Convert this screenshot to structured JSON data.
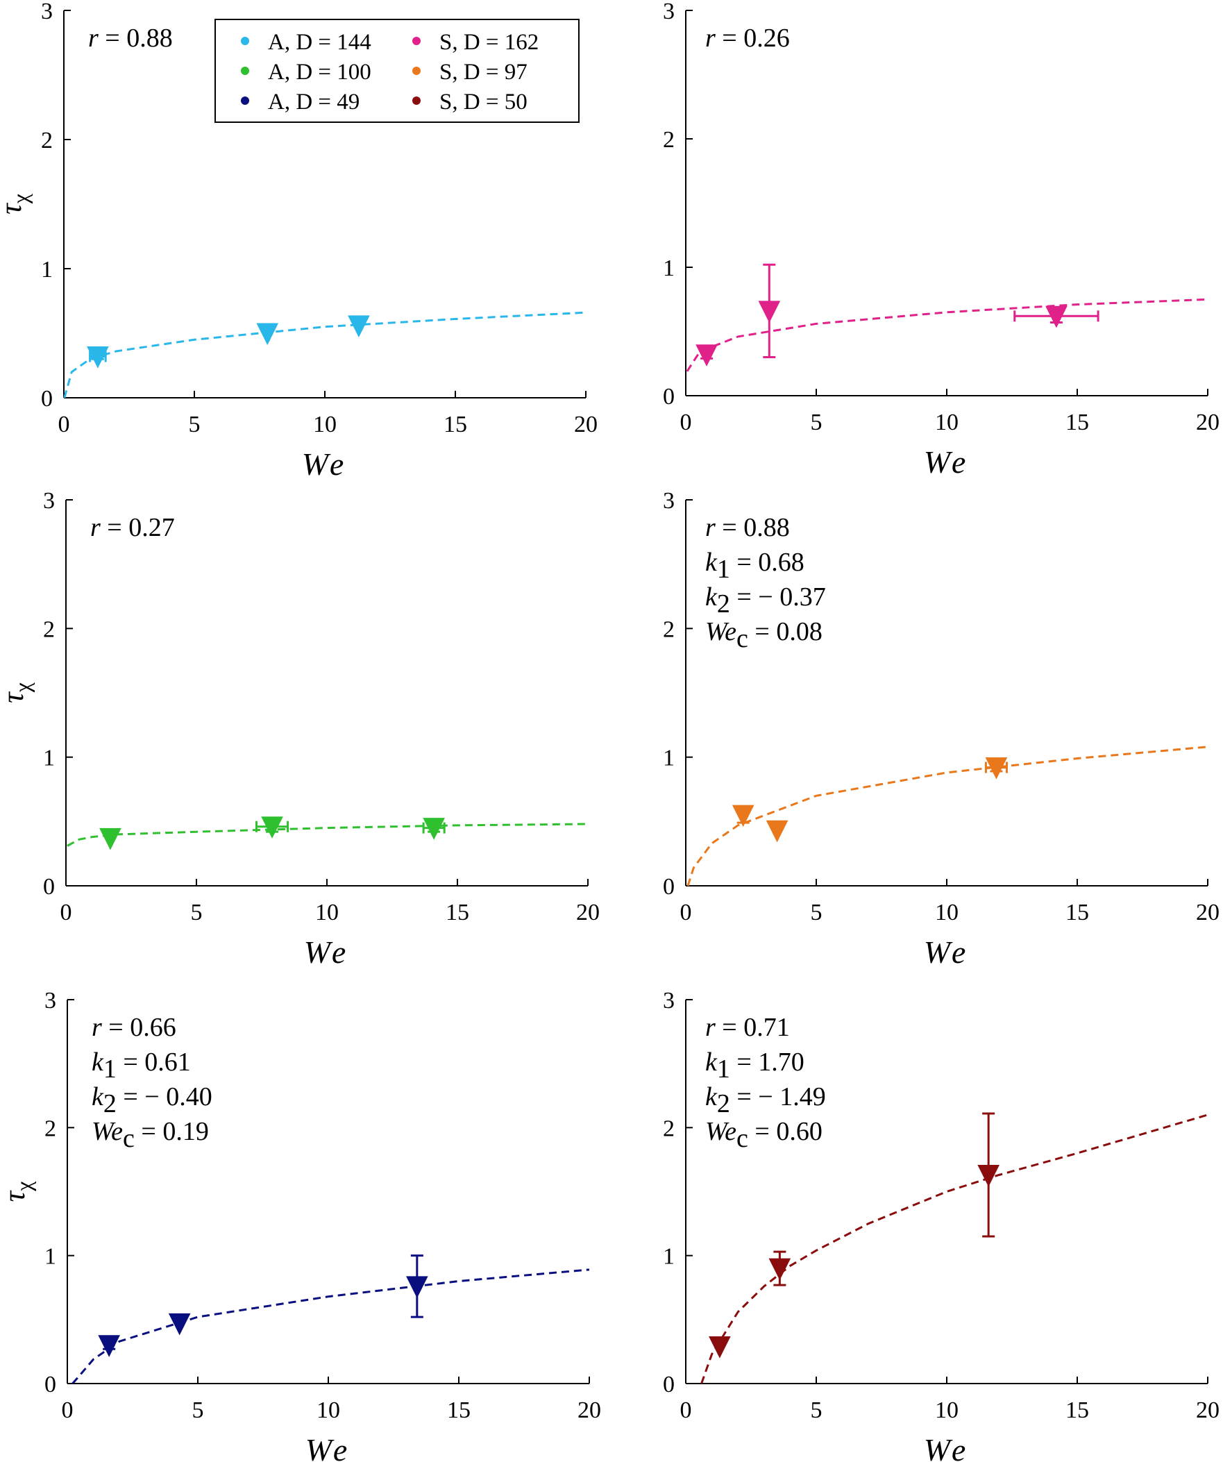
{
  "chart_data": [
    {
      "type": "scatter",
      "xlabel": "We",
      "ylabel": "τχ",
      "xlim": [
        0,
        20
      ],
      "ylim": [
        0,
        3
      ],
      "xticks": [
        "0",
        "5",
        "10",
        "15",
        "20"
      ],
      "yticks": [
        "0",
        "1",
        "2",
        "3"
      ],
      "series": [
        {
          "name": "A, D = 144",
          "color": "#29b6e8",
          "points": [
            {
              "x": 1.3,
              "y": 0.32,
              "xerr": 0.3,
              "yerr": 0.02
            },
            {
              "x": 7.8,
              "y": 0.5
            },
            {
              "x": 11.3,
              "y": 0.56
            }
          ],
          "fit": [
            [
              0.02,
              0.0
            ],
            [
              0.3,
              0.2
            ],
            [
              1,
              0.3
            ],
            [
              2,
              0.36
            ],
            [
              5,
              0.45
            ],
            [
              10,
              0.55
            ],
            [
              15,
              0.61
            ],
            [
              20,
              0.66
            ]
          ]
        }
      ],
      "annotations": [
        {
          "var": "r",
          "value": "= 0.88"
        }
      ]
    },
    {
      "type": "scatter",
      "xlabel": "We",
      "ylabel": "",
      "xlim": [
        0,
        20
      ],
      "ylim": [
        0,
        3
      ],
      "xticks": [
        "0",
        "5",
        "10",
        "15",
        "20"
      ],
      "yticks": [
        "0",
        "1",
        "2",
        "3"
      ],
      "series": [
        {
          "name": "S, D = 162",
          "color": "#e0218a",
          "points": [
            {
              "x": 0.8,
              "y": 0.32,
              "yerr": 0.03
            },
            {
              "x": 3.2,
              "y": 0.66,
              "yerr": 0.36
            },
            {
              "x": 14.2,
              "y": 0.62,
              "xerr": 1.6,
              "yerr": 0.05
            }
          ],
          "fit": [
            [
              0.05,
              0.19
            ],
            [
              0.5,
              0.33
            ],
            [
              1,
              0.38
            ],
            [
              2,
              0.46
            ],
            [
              5,
              0.56
            ],
            [
              10,
              0.65
            ],
            [
              15,
              0.71
            ],
            [
              20,
              0.75
            ]
          ]
        }
      ],
      "annotations": [
        {
          "var": "r",
          "value": "= 0.26"
        }
      ]
    },
    {
      "type": "scatter",
      "xlabel": "We",
      "ylabel": "τχ",
      "xlim": [
        0,
        20
      ],
      "ylim": [
        0,
        3
      ],
      "xticks": [
        "0",
        "5",
        "10",
        "15",
        "20"
      ],
      "yticks": [
        "0",
        "1",
        "2",
        "3"
      ],
      "series": [
        {
          "name": "A, D = 100",
          "color": "#2fc02f",
          "points": [
            {
              "x": 1.7,
              "y": 0.37
            },
            {
              "x": 7.9,
              "y": 0.46,
              "xerr": 0.6,
              "yerr": 0.04
            },
            {
              "x": 14.1,
              "y": 0.45,
              "xerr": 0.4,
              "yerr": 0.03
            }
          ],
          "fit": [
            [
              0.05,
              0.31
            ],
            [
              0.5,
              0.36
            ],
            [
              1,
              0.38
            ],
            [
              2,
              0.4
            ],
            [
              5,
              0.42
            ],
            [
              10,
              0.45
            ],
            [
              15,
              0.47
            ],
            [
              20,
              0.48
            ]
          ]
        }
      ],
      "annotations": [
        {
          "var": "r",
          "value": "= 0.27"
        }
      ]
    },
    {
      "type": "scatter",
      "xlabel": "We",
      "ylabel": "",
      "xlim": [
        0,
        20
      ],
      "ylim": [
        0,
        3
      ],
      "xticks": [
        "0",
        "5",
        "10",
        "15",
        "20"
      ],
      "yticks": [
        "0",
        "1",
        "2",
        "3"
      ],
      "series": [
        {
          "name": "S, D = 97",
          "color": "#e8781b",
          "points": [
            {
              "x": 2.2,
              "y": 0.55,
              "yerr": 0.06
            },
            {
              "x": 3.5,
              "y": 0.43
            },
            {
              "x": 11.9,
              "y": 0.92,
              "xerr": 0.4,
              "yerr": 0.03
            }
          ],
          "fit": [
            [
              0.08,
              0.0
            ],
            [
              0.3,
              0.14
            ],
            [
              1,
              0.33
            ],
            [
              2,
              0.47
            ],
            [
              5,
              0.7
            ],
            [
              10,
              0.88
            ],
            [
              15,
              0.99
            ],
            [
              20,
              1.08
            ]
          ]
        }
      ],
      "annotations": [
        {
          "var": "r",
          "sub": "",
          "value": "= 0.88"
        },
        {
          "var": "k",
          "sub": "1",
          "value": "= 0.68"
        },
        {
          "var": "k",
          "sub": "2",
          "value": "= − 0.37"
        },
        {
          "var": "We",
          "sub": "c",
          "value": "= 0.08"
        }
      ]
    },
    {
      "type": "scatter",
      "xlabel": "We",
      "ylabel": "τχ",
      "xlim": [
        0,
        20
      ],
      "ylim": [
        0,
        3
      ],
      "xticks": [
        "0",
        "5",
        "10",
        "15",
        "20"
      ],
      "yticks": [
        "0",
        "1",
        "2",
        "3"
      ],
      "series": [
        {
          "name": "A, D = 49",
          "color": "#0a0f80",
          "points": [
            {
              "x": 1.6,
              "y": 0.3,
              "yerr": 0.03
            },
            {
              "x": 4.3,
              "y": 0.47
            },
            {
              "x": 13.4,
              "y": 0.76,
              "yerr": 0.24
            }
          ],
          "fit": [
            [
              0.2,
              0.0
            ],
            [
              0.5,
              0.07
            ],
            [
              1,
              0.19
            ],
            [
              2,
              0.33
            ],
            [
              5,
              0.52
            ],
            [
              10,
              0.68
            ],
            [
              15,
              0.8
            ],
            [
              20,
              0.89
            ]
          ]
        }
      ],
      "annotations": [
        {
          "var": "r",
          "sub": "",
          "value": "= 0.66"
        },
        {
          "var": "k",
          "sub": "1",
          "value": "= 0.61"
        },
        {
          "var": "k",
          "sub": "2",
          "value": "= − 0.40"
        },
        {
          "var": "We",
          "sub": "c",
          "value": "= 0.19"
        }
      ]
    },
    {
      "type": "scatter",
      "xlabel": "We",
      "ylabel": "",
      "xlim": [
        0,
        20
      ],
      "ylim": [
        0,
        3
      ],
      "xticks": [
        "0",
        "5",
        "10",
        "15",
        "20"
      ],
      "yticks": [
        "0",
        "1",
        "2",
        "3"
      ],
      "series": [
        {
          "name": "S, D = 50",
          "color": "#8a0d0d",
          "points": [
            {
              "x": 1.3,
              "y": 0.29
            },
            {
              "x": 3.6,
              "y": 0.9,
              "yerr": 0.13
            },
            {
              "x": 11.6,
              "y": 1.63,
              "yerr": 0.48
            }
          ],
          "fit": [
            [
              0.6,
              0.0
            ],
            [
              1,
              0.23
            ],
            [
              2,
              0.56
            ],
            [
              3,
              0.76
            ],
            [
              4,
              0.92
            ],
            [
              5,
              1.04
            ],
            [
              7,
              1.25
            ],
            [
              10,
              1.5
            ],
            [
              12,
              1.63
            ],
            [
              15,
              1.8
            ],
            [
              20,
              2.1
            ]
          ]
        }
      ],
      "annotations": [
        {
          "var": "r",
          "sub": "",
          "value": "= 0.71"
        },
        {
          "var": "k",
          "sub": "1",
          "value": "= 1.70"
        },
        {
          "var": "k",
          "sub": "2",
          "value": "= − 1.49"
        },
        {
          "var": "We",
          "sub": "c",
          "value": "= 0.60"
        }
      ]
    }
  ],
  "legend": {
    "placement": "top, inside first panel",
    "items": [
      {
        "label": "A, D = 144",
        "color": "#29b6e8"
      },
      {
        "label": "S, D = 162",
        "color": "#e0218a"
      },
      {
        "label": "A, D = 100",
        "color": "#2fc02f"
      },
      {
        "label": "S, D = 97",
        "color": "#e8781b"
      },
      {
        "label": "A, D = 49",
        "color": "#0a0f80"
      },
      {
        "label": "S, D = 50",
        "color": "#8a0d0d"
      }
    ]
  }
}
